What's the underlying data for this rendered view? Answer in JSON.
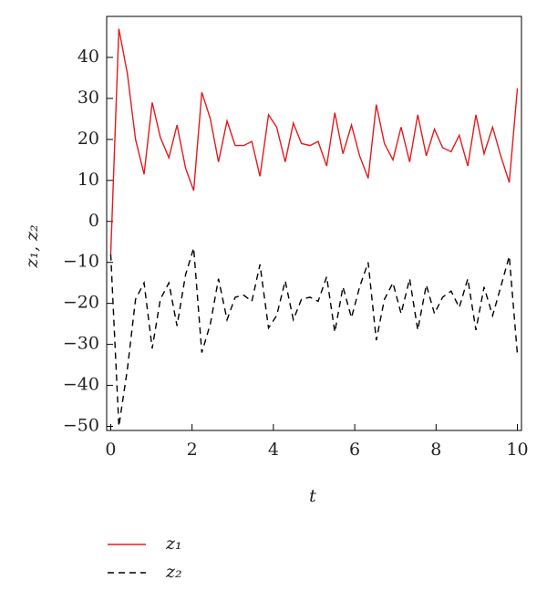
{
  "chart_data": {
    "type": "line",
    "xlabel": "t",
    "ylabel": "z₁, z₂",
    "x": [
      0,
      0.2,
      0.41,
      0.61,
      0.82,
      1.02,
      1.22,
      1.43,
      1.63,
      1.84,
      2.04,
      2.24,
      2.45,
      2.65,
      2.86,
      3.06,
      3.27,
      3.47,
      3.67,
      3.88,
      4.08,
      4.29,
      4.49,
      4.69,
      4.9,
      5.1,
      5.31,
      5.51,
      5.71,
      5.92,
      6.12,
      6.33,
      6.53,
      6.73,
      6.94,
      7.14,
      7.35,
      7.55,
      7.76,
      7.96,
      8.16,
      8.37,
      8.57,
      8.78,
      8.98,
      9.18,
      9.39,
      9.59,
      9.8,
      10
    ],
    "series": [
      {
        "name": "z₁",
        "color": "#e41a1c",
        "dash": "none",
        "values": [
          -8,
          47,
          36,
          20,
          11.5,
          29,
          20.5,
          15.5,
          23.5,
          13,
          7.5,
          31.5,
          25,
          14.5,
          24.5,
          18.5,
          18.5,
          19.5,
          11,
          26,
          23,
          14.5,
          24,
          19,
          18.5,
          19.5,
          13.5,
          26.5,
          16.5,
          23.5,
          16,
          10.5,
          28.5,
          19,
          15,
          23,
          14.5,
          26,
          16,
          22.5,
          18,
          17,
          21,
          13.5,
          26,
          16.5,
          23,
          16,
          9.5,
          32.5
        ]
      },
      {
        "name": "z₂",
        "color": "#000000",
        "dash": "7,5",
        "values": [
          -8,
          -50,
          -36,
          -19,
          -15,
          -31,
          -19,
          -15,
          -25.5,
          -13,
          -6.5,
          -32,
          -25,
          -14,
          -24,
          -18.5,
          -18,
          -19.5,
          -10.5,
          -26,
          -23,
          -14.5,
          -24,
          -19,
          -18.5,
          -19.5,
          -13.5,
          -27,
          -16,
          -23.5,
          -16,
          -10,
          -29,
          -19,
          -15,
          -22.5,
          -14,
          -26.5,
          -15.5,
          -22.5,
          -18.5,
          -17,
          -21,
          -14,
          -26.5,
          -16,
          -23,
          -16,
          -8.5,
          -32.5
        ]
      }
    ],
    "xlim": [
      -0.1,
      10.1
    ],
    "ylim": [
      -51,
      50
    ],
    "xticks": [
      0,
      2,
      4,
      6,
      8,
      10
    ],
    "yticks": [
      {
        "value": -50,
        "label": "−50"
      },
      {
        "value": -40,
        "label": "−40"
      },
      {
        "value": -30,
        "label": "−30"
      },
      {
        "value": -20,
        "label": "−20"
      },
      {
        "value": -10,
        "label": "−10"
      },
      0,
      10,
      20,
      30,
      40
    ],
    "legend": "bottom-left"
  }
}
